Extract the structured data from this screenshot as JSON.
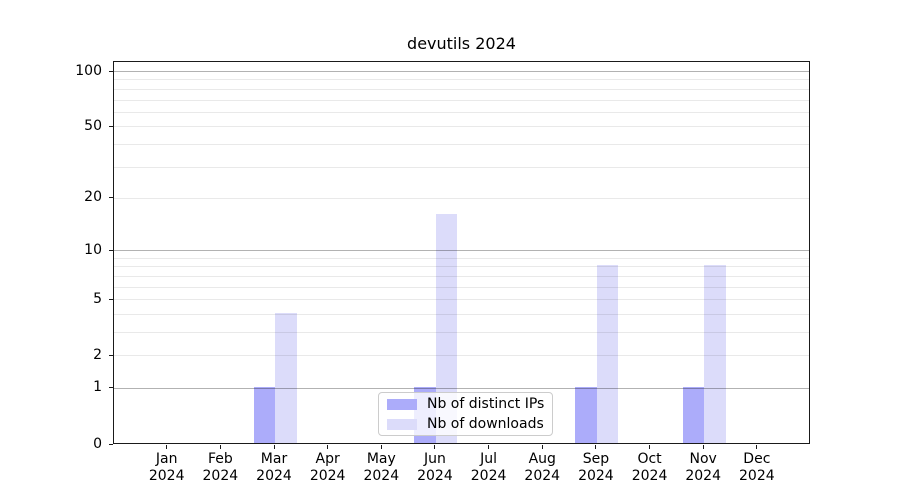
{
  "chart_data": {
    "type": "bar",
    "title": "devutils 2024",
    "categories": [
      "Jan 2024",
      "Feb 2024",
      "Mar 2024",
      "Apr 2024",
      "May 2024",
      "Jun 2024",
      "Jul 2024",
      "Aug 2024",
      "Sep 2024",
      "Oct 2024",
      "Nov 2024",
      "Dec 2024"
    ],
    "series": [
      {
        "name": "Nb of distinct IPs",
        "color": "#acacfa",
        "values": [
          0,
          0,
          1,
          0,
          0,
          1,
          0,
          0,
          1,
          0,
          1,
          0
        ]
      },
      {
        "name": "Nb of downloads",
        "color": "#dcdcfa",
        "values": [
          0,
          0,
          4,
          0,
          0,
          16,
          0,
          0,
          8,
          0,
          8,
          0
        ]
      }
    ],
    "xlabel": "",
    "ylabel": "",
    "yscale": "log1p",
    "ylim": [
      0,
      113.4
    ],
    "yticks": [
      0,
      1,
      2,
      5,
      10,
      20,
      50,
      100
    ],
    "major_gridlines": [
      1,
      10,
      100
    ],
    "minor_gridlines": [
      2,
      3,
      4,
      5,
      6,
      7,
      8,
      9,
      20,
      30,
      40,
      50,
      60,
      70,
      80,
      90
    ],
    "grid": true,
    "legend_position": "bottom-center",
    "background_color": "#ffffff"
  }
}
